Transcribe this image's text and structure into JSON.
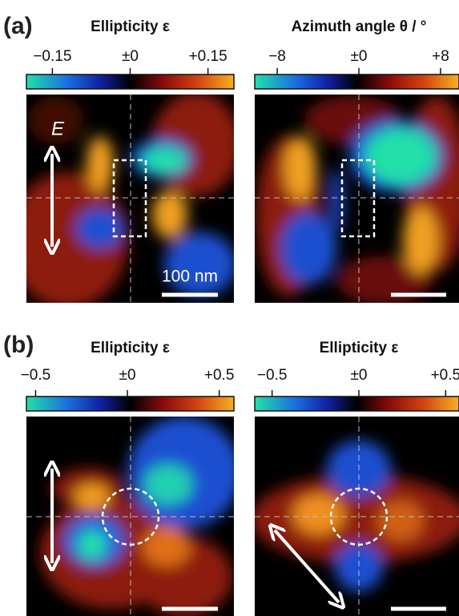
{
  "panels": [
    {
      "label": "(a)",
      "maps": [
        {
          "title": "Ellipticity ε",
          "colorbar": {
            "lim": [
              -0.2,
              0.2
            ],
            "ticks": [
              {
                "value": -0.15,
                "label": "−0.15"
              },
              {
                "value": 0,
                "label": "±0"
              },
              {
                "value": 0.15,
                "label": "+0.15"
              }
            ]
          },
          "field_label": "E",
          "scale_bar": "100 nm"
        },
        {
          "title": "Azimuth angle θ / °",
          "colorbar": {
            "lim": [
              -10.2,
              10.2
            ],
            "ticks": [
              {
                "value": -8,
                "label": "−8"
              },
              {
                "value": 0,
                "label": "±0"
              },
              {
                "value": 8,
                "label": "+8"
              }
            ]
          }
        }
      ]
    },
    {
      "label": "(b)",
      "maps": [
        {
          "title": "Ellipticity ε",
          "colorbar": {
            "lim": [
              -0.55,
              0.58
            ],
            "ticks": [
              {
                "value": -0.5,
                "label": "−0.5"
              },
              {
                "value": 0,
                "label": "±0"
              },
              {
                "value": 0.5,
                "label": "+0.5"
              }
            ]
          }
        },
        {
          "title": "Ellipticity ε",
          "colorbar": {
            "lim": [
              -0.6,
              0.6
            ],
            "ticks": [
              {
                "value": -0.5,
                "label": "−0.5"
              },
              {
                "value": 0,
                "label": "±0"
              },
              {
                "value": 0.5,
                "label": "+0.5"
              }
            ]
          }
        }
      ]
    }
  ]
}
